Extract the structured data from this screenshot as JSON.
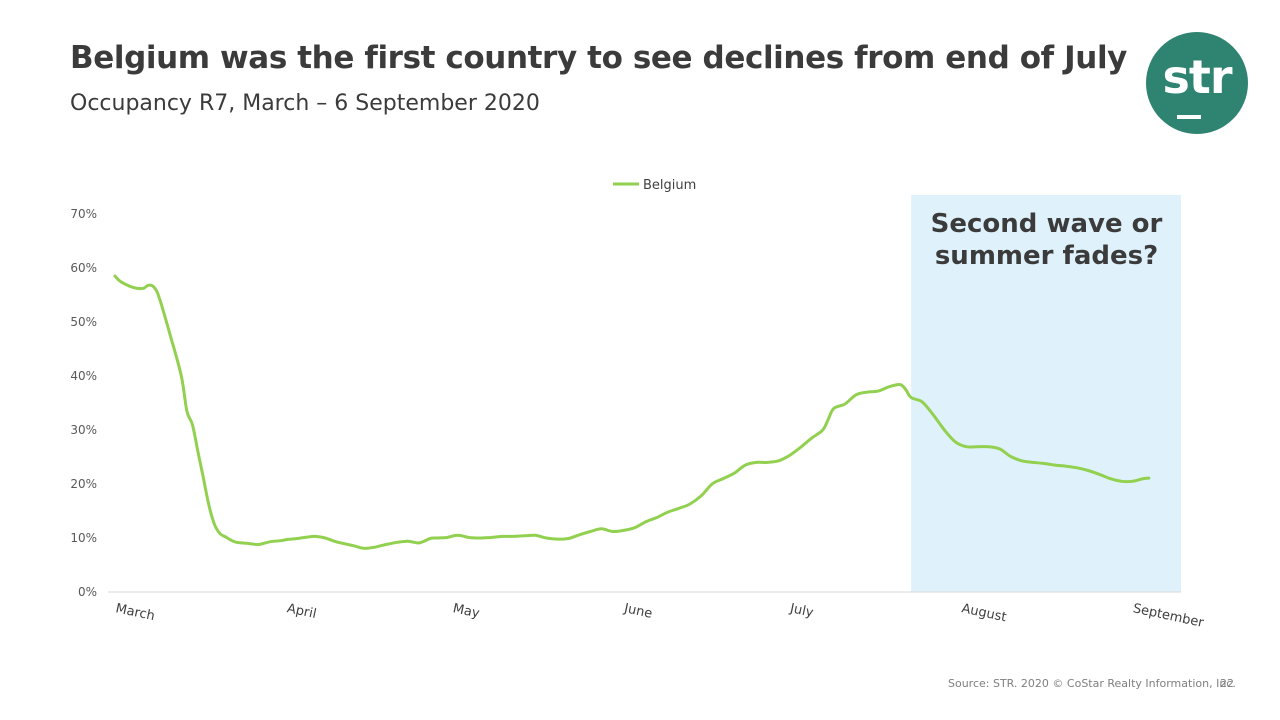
{
  "slide": {
    "title": "Belgium was the first country to see declines from end of July",
    "subtitle": "Occupancy R7, March – 6 September 2020",
    "logo_text": "str",
    "source": "Source: STR. 2020 © CoStar Realty Information, Inc.",
    "page_number": "22",
    "accent_color": "#2e8471"
  },
  "chart_data": {
    "type": "line",
    "title": "",
    "xlabel": "",
    "ylabel": "",
    "ylim": [
      0,
      70
    ],
    "y_ticks": [
      0,
      10,
      20,
      30,
      40,
      50,
      60,
      70
    ],
    "y_tick_labels": [
      "0%",
      "10%",
      "20%",
      "30%",
      "40%",
      "50%",
      "60%",
      "70%"
    ],
    "x_unit": "days since 1 March 2020",
    "x_range": [
      0,
      189
    ],
    "x_ticks": [
      {
        "label": "March",
        "day": 0
      },
      {
        "label": "April",
        "day": 31
      },
      {
        "label": "May",
        "day": 61
      },
      {
        "label": "June",
        "day": 92
      },
      {
        "label": "July",
        "day": 122
      },
      {
        "label": "August",
        "day": 153
      },
      {
        "label": "September",
        "day": 184
      }
    ],
    "grid": false,
    "legend": {
      "position": "top-center",
      "entries": [
        "Belgium"
      ]
    },
    "highlight": {
      "from_day": 144,
      "to_day": 193,
      "label": "Second wave or\nsummer fades?",
      "color": "#dff1fb"
    },
    "series": [
      {
        "name": "Belgium",
        "color": "#92d050",
        "x": [
          0,
          1,
          3,
          5,
          6,
          7,
          8,
          10,
          12,
          13,
          14,
          15,
          16,
          17,
          18,
          19,
          20,
          21,
          22,
          24,
          26,
          28,
          30,
          31,
          33,
          36,
          38,
          40,
          43,
          45,
          47,
          49,
          51,
          53,
          55,
          57,
          58,
          60,
          62,
          64,
          66,
          68,
          70,
          72,
          74,
          76,
          78,
          80,
          82,
          84,
          86,
          88,
          90,
          92,
          94,
          96,
          98,
          100,
          102,
          104,
          106,
          108,
          110,
          112,
          114,
          116,
          118,
          120,
          122,
          124,
          126,
          128,
          129,
          130,
          132,
          134,
          136,
          138,
          140,
          142,
          143,
          144,
          146,
          148,
          150,
          152,
          154,
          156,
          158,
          160,
          162,
          164,
          166,
          168,
          170,
          172,
          174,
          176,
          178,
          180,
          182,
          184,
          186,
          187
        ],
        "values": [
          58.5,
          57.5,
          56.5,
          56.2,
          56.8,
          56.5,
          54.5,
          47.5,
          40.0,
          33.5,
          31.0,
          26.0,
          21.0,
          16.0,
          12.5,
          10.8,
          10.2,
          9.6,
          9.2,
          9.0,
          8.8,
          9.3,
          9.5,
          9.7,
          9.9,
          10.3,
          10.0,
          9.3,
          8.6,
          8.1,
          8.3,
          8.8,
          9.2,
          9.4,
          9.1,
          9.9,
          10.0,
          10.1,
          10.5,
          10.1,
          10.0,
          10.1,
          10.3,
          10.3,
          10.4,
          10.5,
          10.0,
          9.8,
          9.9,
          10.6,
          11.2,
          11.7,
          11.2,
          11.4,
          11.9,
          13.0,
          13.8,
          14.8,
          15.5,
          16.3,
          17.8,
          20.0,
          21.0,
          22.0,
          23.5,
          24.0,
          24.0,
          24.3,
          25.3,
          26.8,
          28.5,
          30.0,
          32.0,
          34.0,
          34.8,
          36.5,
          37.0,
          37.2,
          38.0,
          38.4,
          37.5,
          36.0,
          35.2,
          32.8,
          30.0,
          27.8,
          26.9,
          26.9,
          26.9,
          26.5,
          25.1,
          24.3,
          24.0,
          23.8,
          23.5,
          23.3,
          23.0,
          22.5,
          21.8,
          21.0,
          20.5,
          20.5,
          21.0,
          21.1
        ]
      }
    ]
  }
}
